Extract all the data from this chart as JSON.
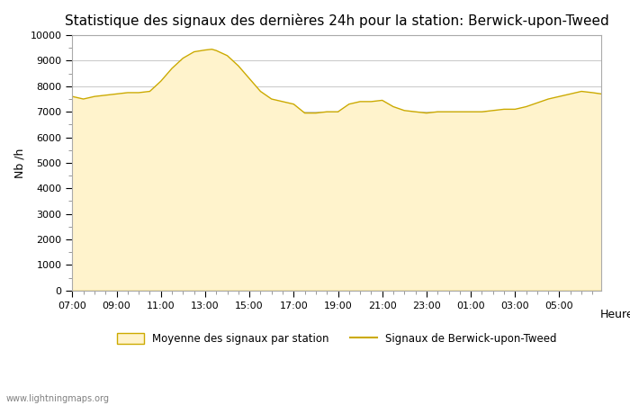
{
  "title": "Statistique des signaux des dernières 24h pour la station: Berwick-upon-Tweed",
  "xlabel": "Heure",
  "ylabel": "Nb /h",
  "watermark": "www.lightningmaps.org",
  "ylim": [
    0,
    10000
  ],
  "yticks": [
    0,
    1000,
    2000,
    3000,
    4000,
    5000,
    6000,
    7000,
    8000,
    9000,
    10000
  ],
  "xtick_positions": [
    7,
    9,
    11,
    13,
    15,
    17,
    19,
    21,
    23,
    25,
    27,
    29
  ],
  "xtick_labels": [
    "07:00",
    "09:00",
    "11:00",
    "13:00",
    "15:00",
    "17:00",
    "19:00",
    "21:00",
    "23:00",
    "01:00",
    "03:00",
    "05:00"
  ],
  "fill_color": "#FFF3CC",
  "line_color": "#CCAA00",
  "bg_color": "#FFFFFF",
  "grid_color": "#CCCCCC",
  "legend_fill_label": "Moyenne des signaux par station",
  "legend_line_label": "Signaux de Berwick-upon-Tweed",
  "x_hours": [
    7.0,
    7.5,
    8.0,
    8.5,
    9.0,
    9.5,
    10.0,
    10.5,
    11.0,
    11.5,
    12.0,
    12.5,
    13.0,
    13.3,
    13.5,
    14.0,
    14.5,
    15.0,
    15.5,
    16.0,
    16.5,
    17.0,
    17.5,
    18.0,
    18.5,
    19.0,
    19.5,
    20.0,
    20.5,
    21.0,
    21.5,
    22.0,
    22.5,
    23.0,
    23.5,
    24.0,
    24.5,
    25.0,
    25.5,
    26.0,
    26.5,
    27.0,
    27.5,
    28.0,
    28.5,
    29.0,
    29.5,
    30.0,
    30.5,
    30.9
  ],
  "y_fill": [
    7600,
    7500,
    7600,
    7650,
    7700,
    7750,
    7750,
    7800,
    8200,
    8700,
    9100,
    9350,
    9420,
    9450,
    9400,
    9200,
    8800,
    8300,
    7800,
    7500,
    7400,
    7300,
    6950,
    6950,
    7000,
    7000,
    7300,
    7400,
    7400,
    7450,
    7200,
    7050,
    7000,
    6950,
    7000,
    7000,
    7000,
    7000,
    7000,
    7050,
    7100,
    7100,
    7200,
    7350,
    7500,
    7600,
    7700,
    7800,
    7750,
    7700
  ],
  "y_station": [
    0,
    0,
    0,
    0,
    0,
    0,
    0,
    0,
    0,
    0,
    0,
    0,
    0,
    0,
    0,
    0,
    0,
    0,
    0,
    0,
    0,
    0,
    0,
    0,
    0,
    0,
    0,
    0,
    0,
    0,
    0,
    0,
    0,
    0,
    0,
    0,
    0,
    0,
    0,
    0,
    0,
    0,
    0,
    0,
    0,
    0,
    0,
    0,
    0,
    0
  ],
  "title_fontsize": 11
}
